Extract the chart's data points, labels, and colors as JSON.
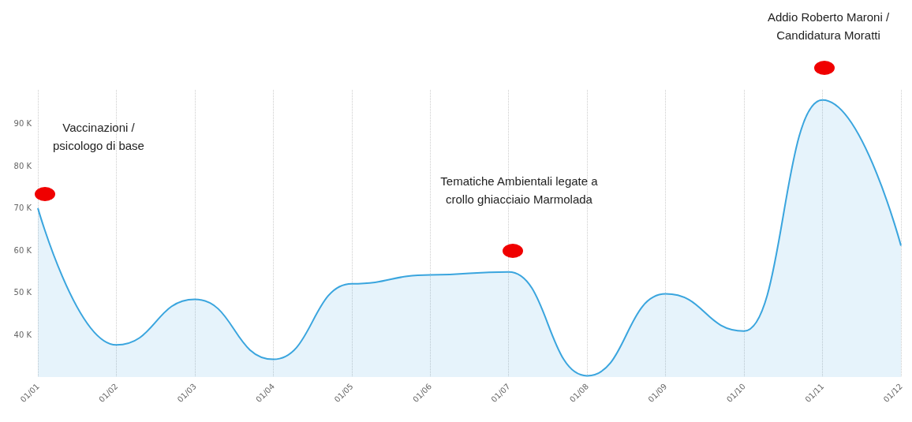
{
  "chart_data": {
    "type": "area",
    "categories": [
      "01/01",
      "01/02",
      "01/03",
      "01/04",
      "01/05",
      "01/06",
      "01/07",
      "01/08",
      "01/09",
      "01/10",
      "01/11",
      "01/12"
    ],
    "series": [
      {
        "color": "#3aa5de",
        "values": [
          70000,
          37600,
          48400,
          34200,
          52100,
          54200,
          54900,
          30300,
          49700,
          40900,
          95600,
          61100
        ]
      }
    ],
    "ylim": [
      30000,
      98000
    ],
    "yticks": [
      {
        "value": 40000,
        "label": "40 K"
      },
      {
        "value": 50000,
        "label": "50 K"
      },
      {
        "value": 60000,
        "label": "60 K"
      },
      {
        "value": 70000,
        "label": "70 K"
      },
      {
        "value": 80000,
        "label": "80 K"
      },
      {
        "value": 90000,
        "label": "90 K"
      }
    ],
    "grid": "x",
    "marker": "none",
    "line_style": "solid",
    "annotations": [
      "Vaccinazioni / psicologo di base",
      "Tematiche Ambientali legate a crollo ghiacciaio Marmolada",
      "Addio Roberto Maroni / Candidatura Moratti"
    ]
  }
}
